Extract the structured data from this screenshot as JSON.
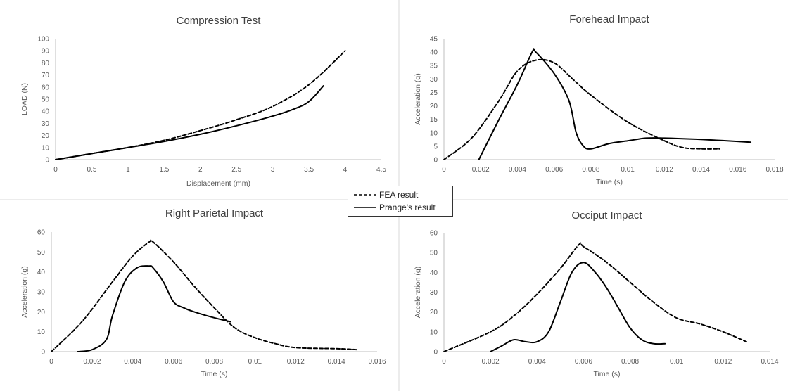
{
  "chart_data": [
    {
      "type": "line",
      "title": "Compression Test",
      "xlabel": "Displacement (mm)",
      "ylabel": "LOAD (N)",
      "xlim": [
        0,
        4.5
      ],
      "ylim": [
        0,
        100
      ],
      "xticks": [
        "0",
        "0.5",
        "1",
        "1.5",
        "2",
        "2.5",
        "3",
        "3.5",
        "4",
        "4.5"
      ],
      "yticks": [
        "0",
        "10",
        "20",
        "30",
        "40",
        "50",
        "60",
        "70",
        "80",
        "90",
        "100"
      ],
      "series": [
        {
          "name": "FEA result",
          "style": "dashed",
          "points": [
            [
              0,
              0
            ],
            [
              0.5,
              5
            ],
            [
              1,
              10
            ],
            [
              1.5,
              16
            ],
            [
              2,
              24
            ],
            [
              2.5,
              33
            ],
            [
              3,
              44
            ],
            [
              3.5,
              62
            ],
            [
              4,
              90
            ]
          ]
        },
        {
          "name": "Prange's result",
          "style": "solid",
          "points": [
            [
              0,
              0
            ],
            [
              0.5,
              5
            ],
            [
              1,
              10
            ],
            [
              1.5,
              15
            ],
            [
              2,
              21
            ],
            [
              2.5,
              28
            ],
            [
              3,
              36
            ],
            [
              3.3,
              42
            ],
            [
              3.5,
              48
            ],
            [
              3.7,
              61
            ]
          ]
        }
      ]
    },
    {
      "type": "line",
      "title": "Forehead Impact",
      "xlabel": "Time (s)",
      "ylabel": "Acceleration (g)",
      "xlim": [
        0,
        0.018
      ],
      "ylim": [
        0,
        45
      ],
      "xticks": [
        "0",
        "0.002",
        "0.004",
        "0.006",
        "0.008",
        "0.01",
        "0.012",
        "0.014",
        "0.016",
        "0.018"
      ],
      "yticks": [
        "0",
        "5",
        "10",
        "15",
        "20",
        "25",
        "30",
        "35",
        "40",
        "45"
      ],
      "series": [
        {
          "name": "FEA result",
          "style": "dashed",
          "points": [
            [
              0,
              0
            ],
            [
              0.0015,
              8
            ],
            [
              0.003,
              22
            ],
            [
              0.004,
              33
            ],
            [
              0.005,
              37
            ],
            [
              0.006,
              36
            ],
            [
              0.007,
              30
            ],
            [
              0.008,
              24
            ],
            [
              0.01,
              14
            ],
            [
              0.012,
              7
            ],
            [
              0.013,
              4.5
            ],
            [
              0.014,
              4
            ],
            [
              0.015,
              4
            ]
          ]
        },
        {
          "name": "Prange's result",
          "style": "solid",
          "points": [
            [
              0.0019,
              0
            ],
            [
              0.003,
              15
            ],
            [
              0.004,
              28
            ],
            [
              0.0048,
              40
            ],
            [
              0.005,
              40
            ],
            [
              0.006,
              32
            ],
            [
              0.0068,
              22
            ],
            [
              0.0072,
              10
            ],
            [
              0.0076,
              5
            ],
            [
              0.008,
              4
            ],
            [
              0.009,
              6
            ],
            [
              0.01,
              7
            ],
            [
              0.011,
              8
            ],
            [
              0.012,
              8
            ],
            [
              0.014,
              7.5
            ],
            [
              0.0167,
              6.5
            ]
          ]
        }
      ]
    },
    {
      "type": "line",
      "title": "Right Parietal Impact",
      "xlabel": "Time (s)",
      "ylabel": "Acceleration (g)",
      "xlim": [
        0,
        0.016
      ],
      "ylim": [
        0,
        60
      ],
      "xticks": [
        "0",
        "0.002",
        "0.004",
        "0.006",
        "0.008",
        "0.01",
        "0.012",
        "0.014",
        "0.016"
      ],
      "yticks": [
        "0",
        "10",
        "20",
        "30",
        "40",
        "50",
        "60"
      ],
      "series": [
        {
          "name": "FEA result",
          "style": "dashed",
          "points": [
            [
              0,
              0
            ],
            [
              0.0015,
              15
            ],
            [
              0.003,
              35
            ],
            [
              0.004,
              48
            ],
            [
              0.0048,
              55
            ],
            [
              0.005,
              55
            ],
            [
              0.006,
              45
            ],
            [
              0.007,
              33
            ],
            [
              0.008,
              22
            ],
            [
              0.009,
              12
            ],
            [
              0.01,
              7
            ],
            [
              0.011,
              4
            ],
            [
              0.012,
              2
            ],
            [
              0.014,
              1.5
            ],
            [
              0.015,
              1
            ]
          ]
        },
        {
          "name": "Prange's result",
          "style": "solid",
          "points": [
            [
              0.0013,
              0
            ],
            [
              0.002,
              1
            ],
            [
              0.0027,
              6
            ],
            [
              0.003,
              18
            ],
            [
              0.0036,
              35
            ],
            [
              0.0042,
              42
            ],
            [
              0.0048,
              43
            ],
            [
              0.005,
              42
            ],
            [
              0.0055,
              35
            ],
            [
              0.006,
              25
            ],
            [
              0.0065,
              22
            ],
            [
              0.007,
              20
            ],
            [
              0.008,
              17
            ],
            [
              0.0088,
              15
            ]
          ]
        }
      ]
    },
    {
      "type": "line",
      "title": "Occiput Impact",
      "xlabel": "Time (s)",
      "ylabel": "Acceleration (g)",
      "xlim": [
        0,
        0.014
      ],
      "ylim": [
        0,
        60
      ],
      "xticks": [
        "0",
        "0.002",
        "0.004",
        "0.006",
        "0.008",
        "0.01",
        "0.012",
        "0.014"
      ],
      "yticks": [
        "0",
        "10",
        "20",
        "30",
        "40",
        "50",
        "60"
      ],
      "series": [
        {
          "name": "FEA result",
          "style": "dashed",
          "points": [
            [
              0,
              0
            ],
            [
              0.002,
              10
            ],
            [
              0.003,
              18
            ],
            [
              0.004,
              29
            ],
            [
              0.005,
              42
            ],
            [
              0.0058,
              54
            ],
            [
              0.006,
              53
            ],
            [
              0.007,
              45
            ],
            [
              0.008,
              35
            ],
            [
              0.009,
              25
            ],
            [
              0.01,
              17
            ],
            [
              0.011,
              14
            ],
            [
              0.012,
              10
            ],
            [
              0.013,
              5
            ]
          ]
        },
        {
          "name": "Prange's result",
          "style": "solid",
          "points": [
            [
              0.002,
              0
            ],
            [
              0.0025,
              3
            ],
            [
              0.003,
              6
            ],
            [
              0.0035,
              5
            ],
            [
              0.004,
              5
            ],
            [
              0.0045,
              10
            ],
            [
              0.005,
              25
            ],
            [
              0.0055,
              40
            ],
            [
              0.006,
              45
            ],
            [
              0.0065,
              40
            ],
            [
              0.007,
              32
            ],
            [
              0.0075,
              22
            ],
            [
              0.008,
              12
            ],
            [
              0.0085,
              6
            ],
            [
              0.009,
              4
            ],
            [
              0.0095,
              4
            ]
          ]
        }
      ]
    }
  ],
  "legend": {
    "items": [
      {
        "label": "FEA result",
        "style": "dashed"
      },
      {
        "label": "Prange's result",
        "style": "solid"
      }
    ]
  },
  "colors": {
    "line": "#000000",
    "axis": "#bfbfbf",
    "text": "#595959",
    "title": "#404040",
    "divider": "#d9d9d9"
  }
}
